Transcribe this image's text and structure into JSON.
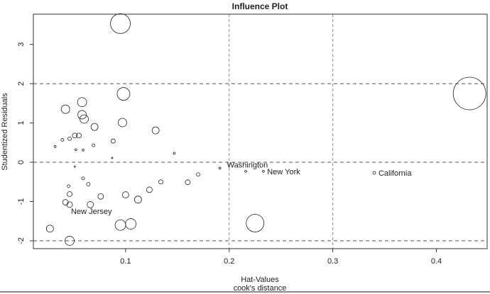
{
  "chart_data": {
    "type": "scatter",
    "title": "Influence Plot",
    "xlabel": "Hat-Values",
    "xlabel2": "cook's distance",
    "ylabel": "Studentized Residuals",
    "xlim": [
      0.011,
      0.449
    ],
    "ylim": [
      -2.2,
      3.77
    ],
    "xticks": [
      0.1,
      0.2,
      0.3,
      0.4
    ],
    "xtick_labels": [
      "0.1",
      "0.2",
      "0.3",
      "0.4"
    ],
    "yticks": [
      -2,
      -1,
      0,
      1,
      2,
      3
    ],
    "ytick_labels": [
      "-2",
      "-1",
      "0",
      "1",
      "2",
      "3"
    ],
    "hlines": [
      -2,
      0,
      2
    ],
    "vlines": [
      0.2,
      0.3
    ],
    "grid": false,
    "size_encodes": "cook's distance",
    "points": [
      {
        "hat": 0.095,
        "res": 3.53,
        "cook": 0.196
      },
      {
        "hat": 0.098,
        "res": 1.74,
        "cook": 0.081
      },
      {
        "hat": 0.058,
        "res": 1.53,
        "cook": 0.042
      },
      {
        "hat": 0.042,
        "res": 1.35,
        "cook": 0.036
      },
      {
        "hat": 0.058,
        "res": 1.21,
        "cook": 0.036
      },
      {
        "hat": 0.06,
        "res": 1.1,
        "cook": 0.036
      },
      {
        "hat": 0.097,
        "res": 1.01,
        "cook": 0.036
      },
      {
        "hat": 0.07,
        "res": 0.9,
        "cook": 0.025
      },
      {
        "hat": 0.129,
        "res": 0.81,
        "cook": 0.025
      },
      {
        "hat": 0.051,
        "res": 0.68,
        "cook": 0.012
      },
      {
        "hat": 0.055,
        "res": 0.68,
        "cook": 0.012
      },
      {
        "hat": 0.046,
        "res": 0.6,
        "cook": 0.006
      },
      {
        "hat": 0.039,
        "res": 0.57,
        "cook": 0.004
      },
      {
        "hat": 0.088,
        "res": 0.54,
        "cook": 0.009
      },
      {
        "hat": 0.032,
        "res": 0.4,
        "cook": 0.002
      },
      {
        "hat": 0.069,
        "res": 0.43,
        "cook": 0.004
      },
      {
        "hat": 0.059,
        "res": 0.31,
        "cook": 0.002
      },
      {
        "hat": 0.052,
        "res": 0.32,
        "cook": 0.002
      },
      {
        "hat": 0.147,
        "res": 0.23,
        "cook": 0.002
      },
      {
        "hat": 0.087,
        "res": 0.11,
        "cook": 0.001
      },
      {
        "hat": 0.051,
        "res": -0.11,
        "cook": 0.001
      },
      {
        "hat": 0.191,
        "res": -0.15,
        "cook": 0.002,
        "label": "Washington"
      },
      {
        "hat": 0.059,
        "res": -0.41,
        "cook": 0.004
      },
      {
        "hat": 0.045,
        "res": -0.61,
        "cook": 0.004
      },
      {
        "hat": 0.064,
        "res": -0.56,
        "cook": 0.006
      },
      {
        "hat": 0.17,
        "res": -0.31,
        "cook": 0.006
      },
      {
        "hat": 0.134,
        "res": -0.5,
        "cook": 0.009
      },
      {
        "hat": 0.16,
        "res": -0.51,
        "cook": 0.012
      },
      {
        "hat": 0.123,
        "res": -0.7,
        "cook": 0.016
      },
      {
        "hat": 0.046,
        "res": -0.81,
        "cook": 0.012
      },
      {
        "hat": 0.076,
        "res": -0.87,
        "cook": 0.016
      },
      {
        "hat": 0.1,
        "res": -0.83,
        "cook": 0.02
      },
      {
        "hat": 0.042,
        "res": -1.02,
        "cook": 0.016
      },
      {
        "hat": 0.046,
        "res": -1.08,
        "cook": 0.016,
        "label": "New Jersey"
      },
      {
        "hat": 0.066,
        "res": -1.08,
        "cook": 0.02
      },
      {
        "hat": 0.112,
        "res": -0.95,
        "cook": 0.025
      },
      {
        "hat": 0.027,
        "res": -1.69,
        "cook": 0.025
      },
      {
        "hat": 0.095,
        "res": -1.6,
        "cook": 0.056
      },
      {
        "hat": 0.105,
        "res": -1.57,
        "cook": 0.056
      },
      {
        "hat": 0.046,
        "res": -2.0,
        "cook": 0.042
      },
      {
        "hat": 0.216,
        "res": -0.23,
        "cook": 0.002
      },
      {
        "hat": 0.233,
        "res": -0.23,
        "cook": 0.002,
        "label": "New York"
      },
      {
        "hat": 0.34,
        "res": -0.27,
        "cook": 0.004,
        "label": "California"
      },
      {
        "hat": 0.225,
        "res": -1.55,
        "cook": 0.156
      },
      {
        "hat": 0.432,
        "res": 1.75,
        "cook": 0.529
      }
    ]
  }
}
